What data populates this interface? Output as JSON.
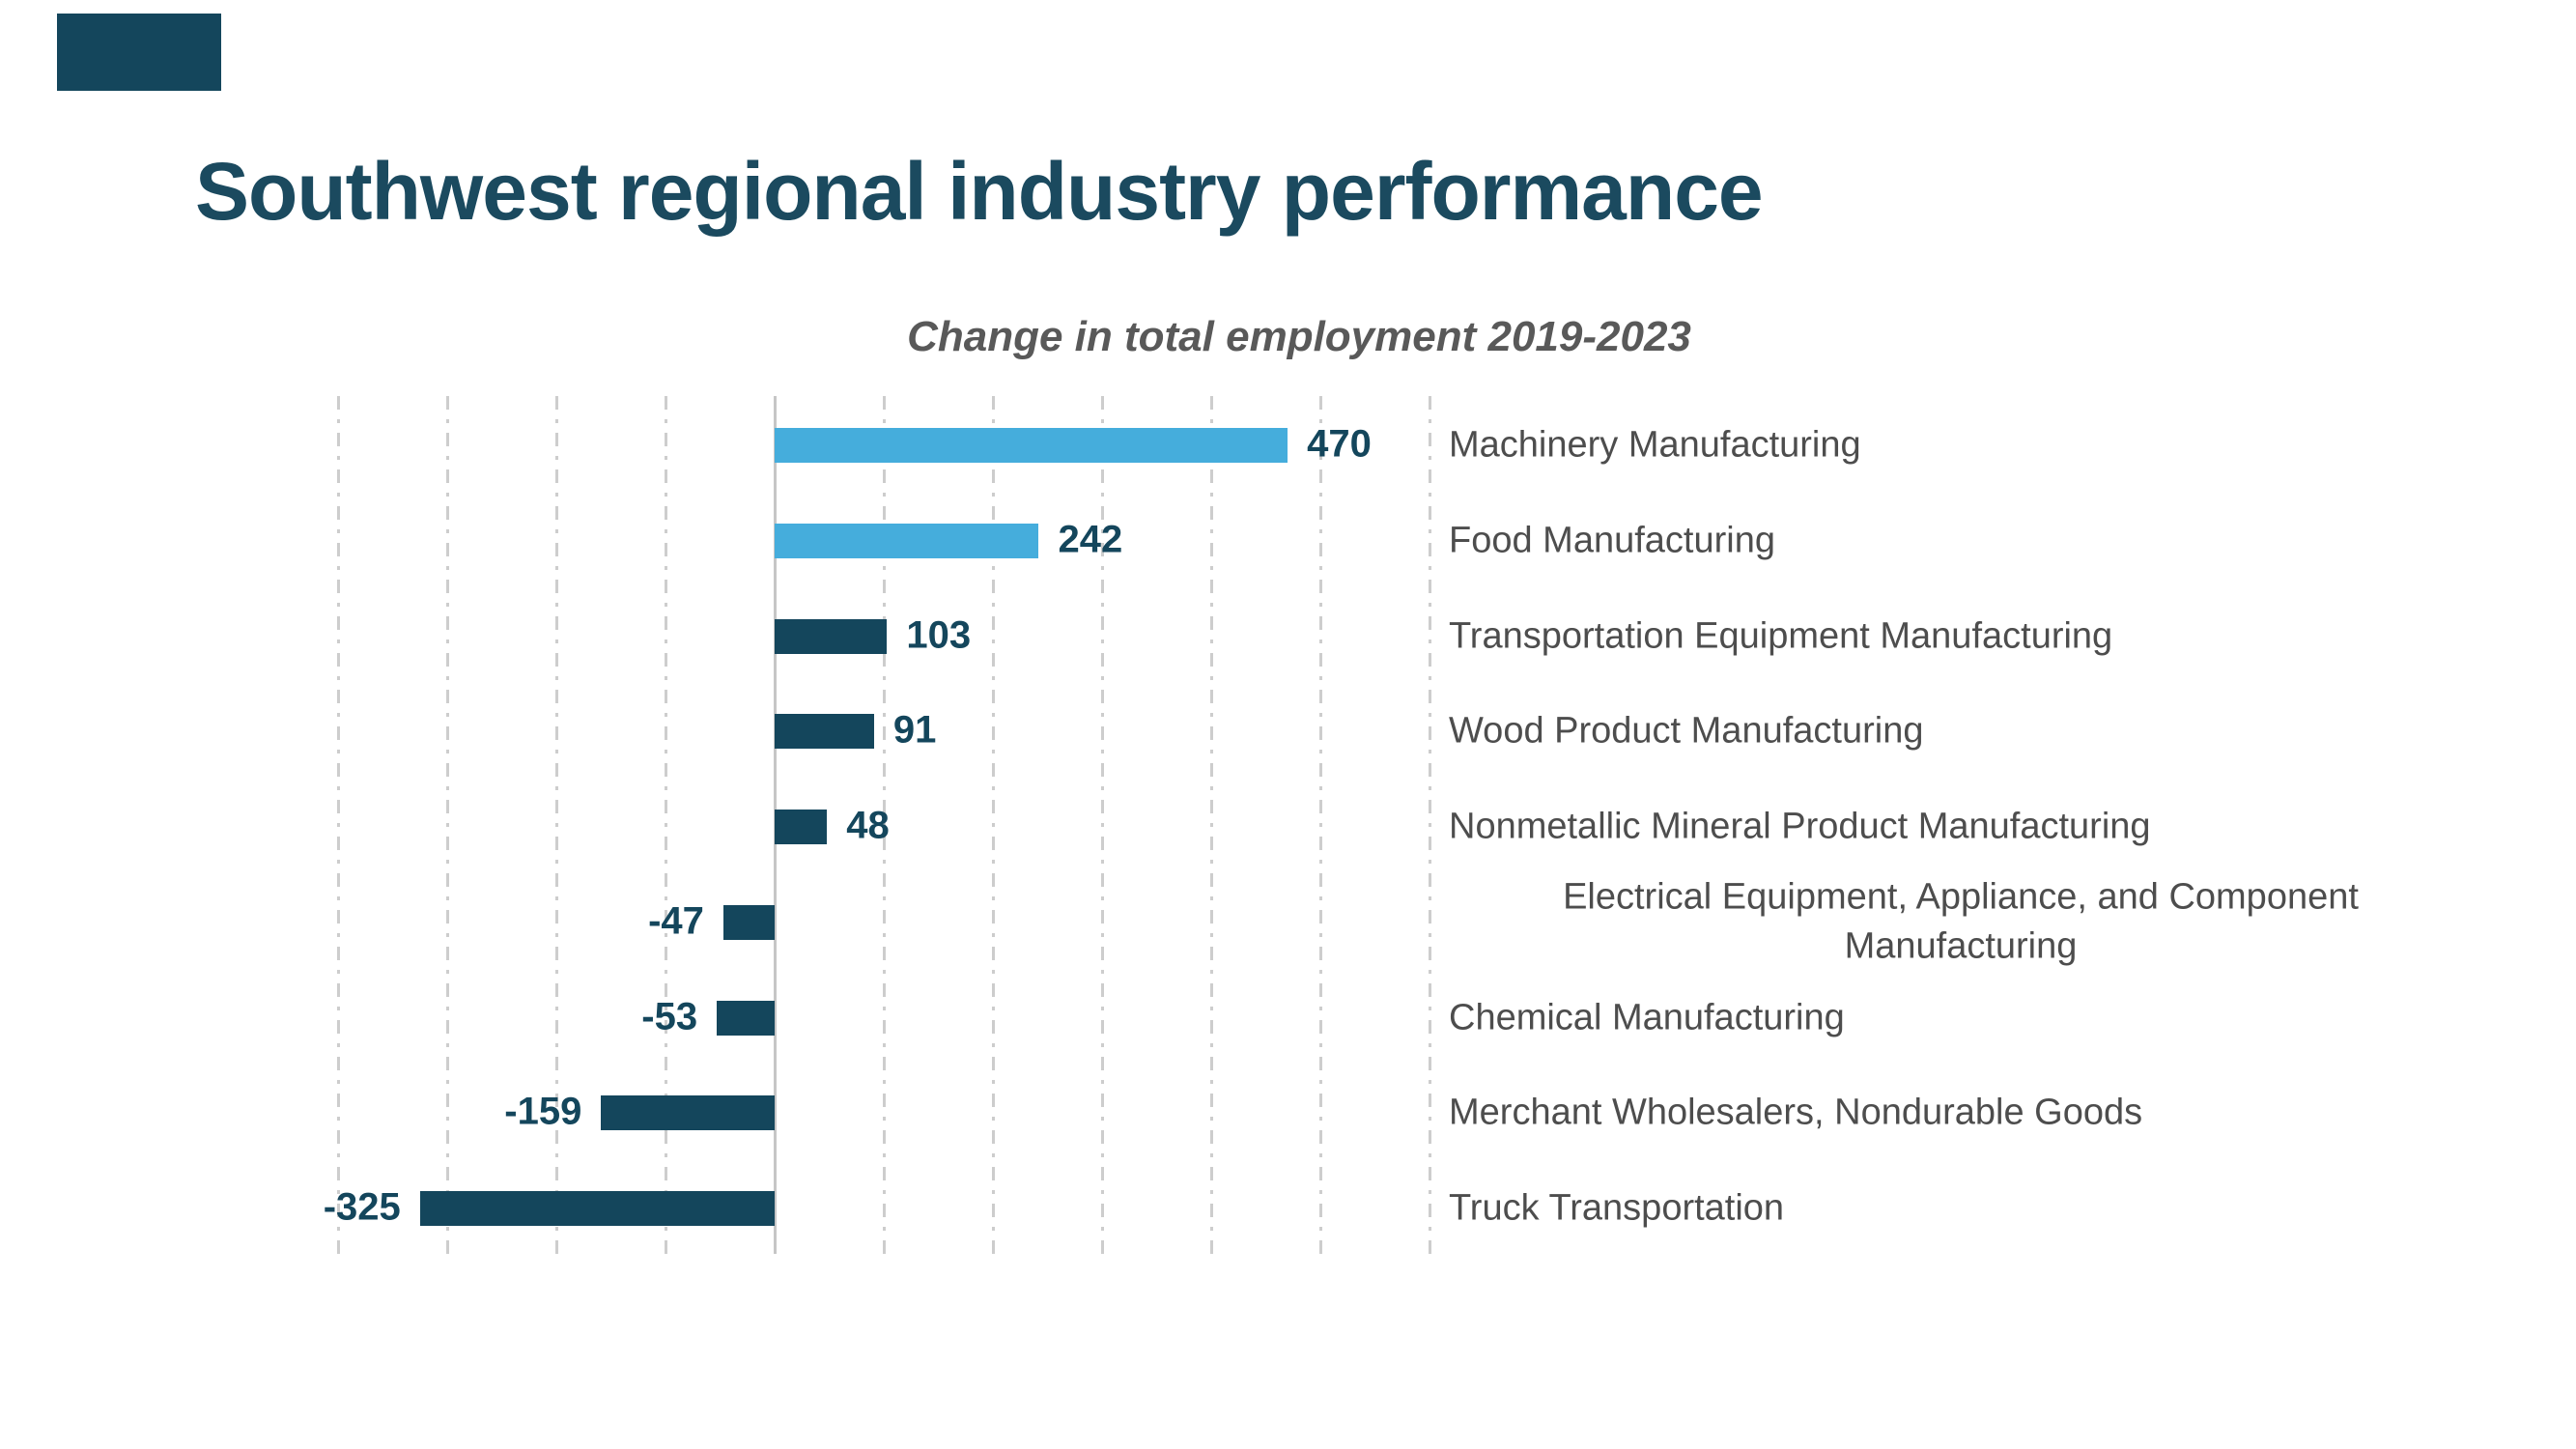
{
  "page": {
    "title": "Southwest regional industry performance"
  },
  "chart_data": {
    "type": "bar",
    "orientation": "horizontal",
    "title": "Change in total employment 2019-2023",
    "categories": [
      "Machinery Manufacturing",
      "Food Manufacturing",
      "Transportation Equipment Manufacturing",
      "Wood Product Manufacturing",
      "Nonmetallic Mineral Product Manufacturing",
      "Electrical Equipment, Appliance, and Component Manufacturing",
      "Chemical Manufacturing",
      "Merchant Wholesalers, Nondurable Goods",
      "Truck Transportation"
    ],
    "values": [
      470,
      242,
      103,
      91,
      48,
      -47,
      -53,
      -159,
      -325
    ],
    "data_labels": [
      "470",
      "242",
      "103",
      "91",
      "48",
      "-47",
      "-53",
      "-159",
      "-325"
    ],
    "bar_colors": [
      "#45addc",
      "#45addc",
      "#14465c",
      "#14465c",
      "#14465c",
      "#14465c",
      "#14465c",
      "#14465c",
      "#14465c"
    ],
    "xlim": [
      -400,
      600
    ],
    "gridline_step": 100,
    "grid": "vertical-dash-dot",
    "legend": "none"
  },
  "colors": {
    "accent_light_blue": "#45addc",
    "accent_dark_navy": "#14465c",
    "title_text": "#1b4a5f",
    "chart_title_text": "#595959",
    "category_label_text": "#4d4d4d",
    "value_label_text": "#14465c",
    "gridline": "#cdcdcd",
    "zero_line": "#c6c6c6",
    "corner_swatch": "#14465c"
  }
}
